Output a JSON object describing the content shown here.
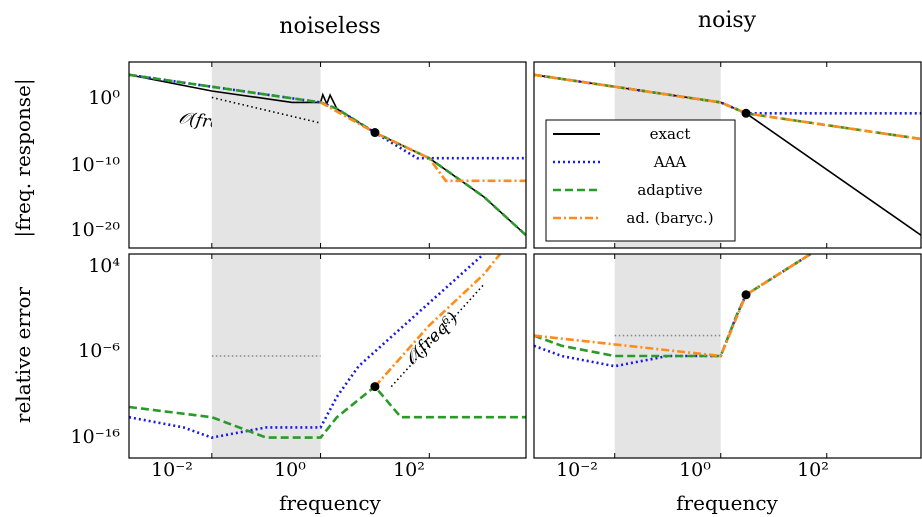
{
  "figure": {
    "col_titles": [
      "noiseless",
      "noisy"
    ],
    "ylabel_top": "|freq. response|",
    "ylabel_bottom": "relative error",
    "xlabel": "frequency",
    "legend": [
      {
        "label": "exact",
        "color": "#000000",
        "dash": "solid"
      },
      {
        "label": "AAA",
        "color": "#1a1ae6",
        "dash": "dotted"
      },
      {
        "label": "adaptive",
        "color": "#2a9a2a",
        "dash": "dashed"
      },
      {
        "label": "ad. (baryc.)",
        "color": "#ff8c1a",
        "dash": "dashdot"
      }
    ],
    "annotations": {
      "slope_top": "𝒪(freq⁻²)",
      "slope_bottom": "𝒪(freq⁶)"
    },
    "x_ticks": [
      "10⁻²",
      "10⁰",
      "10²"
    ],
    "y_ticks_top": [
      "10⁰",
      "10⁻¹⁰",
      "10⁻²⁰"
    ],
    "y_ticks_bottom": [
      "10⁴",
      "10⁻⁶",
      "10⁻¹⁶"
    ]
  },
  "chart_data": [
    {
      "type": "line",
      "panel": "noiseless / |freq. response|",
      "xscale": "log",
      "yscale": "log",
      "xlim": [
        0.0003,
        6000
      ],
      "ylim": [
        1e-24,
        100000.0
      ],
      "shaded_band": [
        0.01,
        1
      ],
      "marker": {
        "x": 10,
        "y": 1e-06
      },
      "reference_line": {
        "label": "𝒪(freq⁻²)",
        "x": [
          0.01,
          1
        ],
        "y": [
          0.3,
          3e-05
        ]
      },
      "series": [
        {
          "name": "exact",
          "x": [
            0.0003,
            0.01,
            0.3,
            1,
            1.1,
            1.3,
            1.5,
            2,
            10,
            100,
            1000,
            6000
          ],
          "y": [
            1000,
            3,
            0.05,
            0.05,
            0.8,
            0.03,
            0.7,
            0.005,
            1e-06,
            1e-10,
            1e-16,
            1e-22
          ]
        },
        {
          "name": "AAA",
          "x": [
            0.0003,
            1,
            2,
            10,
            60,
            6000
          ],
          "y": [
            1000,
            0.05,
            0.005,
            1e-06,
            1e-10,
            1e-10
          ]
        },
        {
          "name": "adaptive",
          "x": [
            0.0003,
            1,
            2,
            10,
            100,
            1000,
            6000
          ],
          "y": [
            1000,
            0.05,
            0.005,
            1e-06,
            1e-10,
            1e-16,
            1e-22
          ]
        },
        {
          "name": "ad. (baryc.)",
          "x": [
            1,
            10,
            100,
            200,
            6000
          ],
          "y": [
            0.05,
            1e-06,
            1e-10,
            3e-14,
            3e-14
          ]
        }
      ]
    },
    {
      "type": "line",
      "panel": "noisy / |freq. response|",
      "xscale": "log",
      "yscale": "log",
      "xlim": [
        0.0003,
        6000
      ],
      "ylim": [
        1e-24,
        100000.0
      ],
      "shaded_band": [
        0.01,
        1
      ],
      "marker": {
        "x": 3,
        "y": 0.001
      },
      "series": [
        {
          "name": "exact",
          "x": [
            0.0003,
            1,
            3,
            6000
          ],
          "y": [
            1000,
            0.05,
            0.001,
            1e-22
          ]
        },
        {
          "name": "AAA",
          "x": [
            0.0003,
            1,
            3,
            6000
          ],
          "y": [
            1000,
            0.05,
            0.001,
            0.001
          ]
        },
        {
          "name": "adaptive",
          "x": [
            0.0003,
            1,
            3,
            6000
          ],
          "y": [
            1000,
            0.05,
            0.001,
            1e-07
          ]
        },
        {
          "name": "ad. (baryc.)",
          "x": [
            0.0003,
            1,
            3,
            6000
          ],
          "y": [
            1000,
            0.05,
            0.001,
            1e-07
          ]
        }
      ]
    },
    {
      "type": "line",
      "panel": "noiseless / relative error",
      "xscale": "log",
      "yscale": "log",
      "xlim": [
        0.0003,
        6000
      ],
      "ylim": [
        1e-16,
        10000.0
      ],
      "shaded_band": [
        0.01,
        1
      ],
      "marker": {
        "x": 10,
        "y": 1e-09
      },
      "reference_line": {
        "label": "𝒪(freq⁶)",
        "x": [
          20,
          1000
        ],
        "y": [
          1e-09,
          10.0
        ]
      },
      "dotted_level": {
        "x": [
          0.01,
          1
        ],
        "y": 1e-06
      },
      "series": [
        {
          "name": "AAA",
          "x": [
            0.0003,
            0.003,
            0.01,
            0.1,
            1,
            2,
            5,
            1000
          ],
          "y": [
            1e-12,
            1e-13,
            1e-14,
            1e-13,
            1e-13,
            1e-10,
            1e-07,
            10000.0
          ]
        },
        {
          "name": "adaptive",
          "x": [
            0.0003,
            0.01,
            0.1,
            1,
            2,
            10,
            30,
            6000
          ],
          "y": [
            1e-11,
            1e-12,
            1e-14,
            1e-14,
            1e-12,
            1e-09,
            1e-12,
            1e-12
          ]
        },
        {
          "name": "ad. (baryc.)",
          "x": [
            10,
            100,
            1000,
            2000
          ],
          "y": [
            1e-09,
            0.001,
            100.0,
            10000.0
          ]
        }
      ]
    },
    {
      "type": "line",
      "panel": "noisy / relative error",
      "xscale": "log",
      "yscale": "log",
      "xlim": [
        0.0003,
        6000
      ],
      "ylim": [
        1e-16,
        10000.0
      ],
      "shaded_band": [
        0.01,
        1
      ],
      "marker": {
        "x": 3,
        "y": 1.0
      },
      "dotted_level": {
        "x": [
          0.01,
          1
        ],
        "y": 0.0001
      },
      "series": [
        {
          "name": "AAA",
          "x": [
            0.0003,
            0.001,
            0.01,
            0.1,
            1,
            2,
            3,
            100
          ],
          "y": [
            1e-05,
            1e-06,
            1e-07,
            1e-06,
            1e-06,
            0.01,
            1.0,
            100000.0
          ]
        },
        {
          "name": "adaptive",
          "x": [
            0.0003,
            0.001,
            0.01,
            0.1,
            1,
            2,
            3,
            100
          ],
          "y": [
            0.0001,
            1e-05,
            1e-06,
            1e-06,
            1e-06,
            0.01,
            1.0,
            100000.0
          ]
        },
        {
          "name": "ad. (baryc.)",
          "x": [
            0.0003,
            1,
            3,
            100
          ],
          "y": [
            0.0001,
            1e-06,
            1.0,
            100000.0
          ]
        }
      ]
    }
  ]
}
